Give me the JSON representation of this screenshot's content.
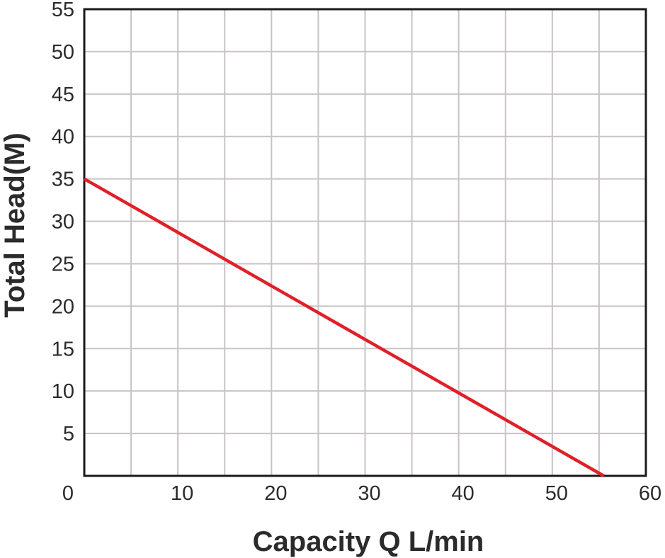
{
  "chart_data": {
    "type": "line",
    "xlabel": "Capacity Q L/min",
    "ylabel": "Total Head(M)",
    "xlim": [
      0,
      60
    ],
    "ylim": [
      0,
      55
    ],
    "x_ticks": [
      0,
      10,
      20,
      30,
      40,
      50,
      60
    ],
    "y_ticks": [
      5,
      10,
      15,
      20,
      25,
      30,
      35,
      40,
      45,
      50,
      55
    ],
    "x_grid_step": 5,
    "y_grid_step": 5,
    "grid": true,
    "series": [
      {
        "color": "#e02028",
        "x": [
          0,
          55.5
        ],
        "y": [
          35,
          0
        ]
      }
    ]
  }
}
